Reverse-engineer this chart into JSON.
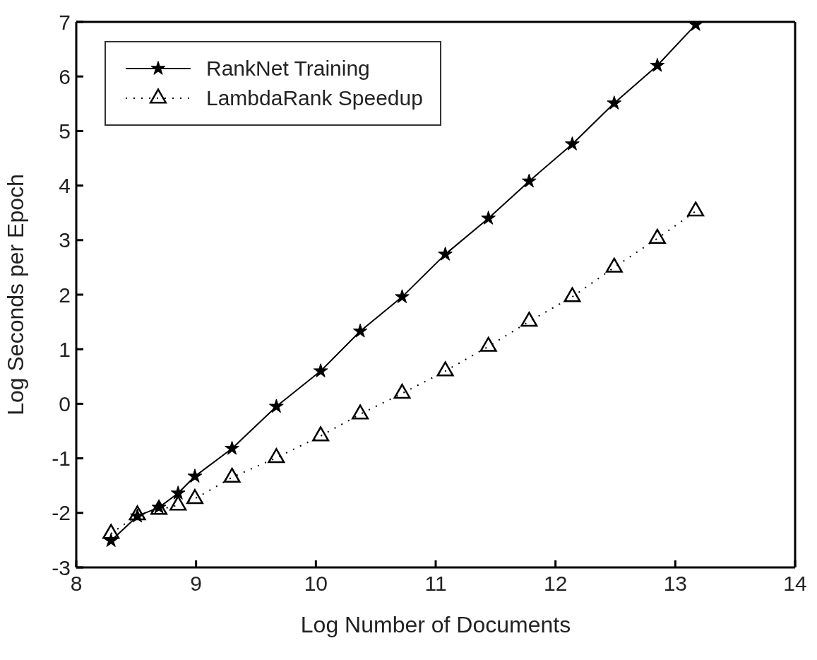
{
  "chart_data": {
    "type": "line",
    "xlabel": "Log Number of Documents",
    "ylabel": "Log Seconds per Epoch",
    "xlim": [
      8,
      14
    ],
    "xticks": [
      8,
      9,
      10,
      11,
      12,
      13,
      14
    ],
    "ylim": [
      -3,
      7
    ],
    "yticks": [
      -3,
      -2,
      -1,
      0,
      1,
      2,
      3,
      4,
      5,
      6,
      7
    ],
    "grid": false,
    "legend": "top left",
    "series": [
      {
        "name": "RankNet Training",
        "color": "#000000",
        "marker": "star",
        "line_style": "solid",
        "x": [
          8.29,
          8.51,
          8.69,
          8.85,
          8.99,
          9.3,
          9.67,
          10.04,
          10.37,
          10.72,
          11.08,
          11.44,
          11.78,
          12.14,
          12.49,
          12.85,
          13.17
        ],
        "values": [
          -2.51,
          -2.06,
          -1.9,
          -1.64,
          -1.33,
          -0.82,
          -0.05,
          0.6,
          1.33,
          1.96,
          2.74,
          3.4,
          4.08,
          4.76,
          5.51,
          6.2,
          6.95
        ]
      },
      {
        "name": "LambdaRank Speedup",
        "color": "#000000",
        "marker": "triangle",
        "line_style": "dotted",
        "x": [
          8.29,
          8.51,
          8.69,
          8.85,
          8.99,
          9.3,
          9.67,
          10.04,
          10.37,
          10.72,
          11.08,
          11.44,
          11.78,
          12.14,
          12.49,
          12.85,
          13.17
        ],
        "values": [
          -2.38,
          -2.04,
          -1.94,
          -1.86,
          -1.74,
          -1.35,
          -0.99,
          -0.59,
          -0.19,
          0.19,
          0.6,
          1.05,
          1.51,
          1.96,
          2.5,
          3.03,
          3.53
        ]
      }
    ]
  }
}
